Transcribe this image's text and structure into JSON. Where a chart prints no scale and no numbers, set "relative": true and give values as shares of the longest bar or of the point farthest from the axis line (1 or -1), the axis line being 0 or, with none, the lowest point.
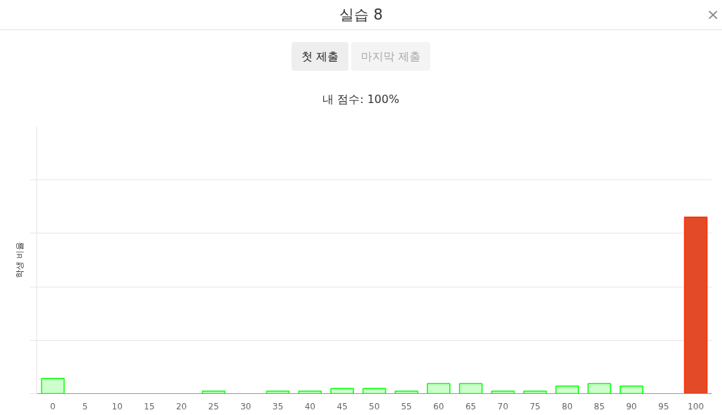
{
  "chart_data": {
    "type": "bar",
    "title": "실습 8",
    "subtitle": "내 점수: 100%",
    "ylabel": "학생 비율",
    "annotations": [
      "첫 제출",
      "마지막 제출",
      "×"
    ],
    "categories": [
      "0",
      "5",
      "10",
      "15",
      "20",
      "25",
      "30",
      "35",
      "40",
      "45",
      "50",
      "55",
      "60",
      "65",
      "70",
      "75",
      "80",
      "85",
      "90",
      "95",
      "100"
    ],
    "values": [
      0.086,
      0,
      0,
      0,
      0,
      0.014,
      0,
      0.014,
      0.014,
      0.029,
      0.029,
      0.014,
      0.057,
      0.057,
      0.014,
      0.014,
      0.043,
      0.057,
      0.043,
      0,
      1
    ],
    "colors": [
      "#ccffcc",
      "#ccffcc",
      "#ccffcc",
      "#ccffcc",
      "#ccffcc",
      "#ccffcc",
      "#ccffcc",
      "#ccffcc",
      "#ccffcc",
      "#ccffcc",
      "#ccffcc",
      "#ccffcc",
      "#ccffcc",
      "#ccffcc",
      "#ccffcc",
      "#ccffcc",
      "#ccffcc",
      "#ccffcc",
      "#ccffcc",
      "#ccffcc",
      "#e24a28"
    ],
    "relative": true,
    "grid": "y"
  }
}
